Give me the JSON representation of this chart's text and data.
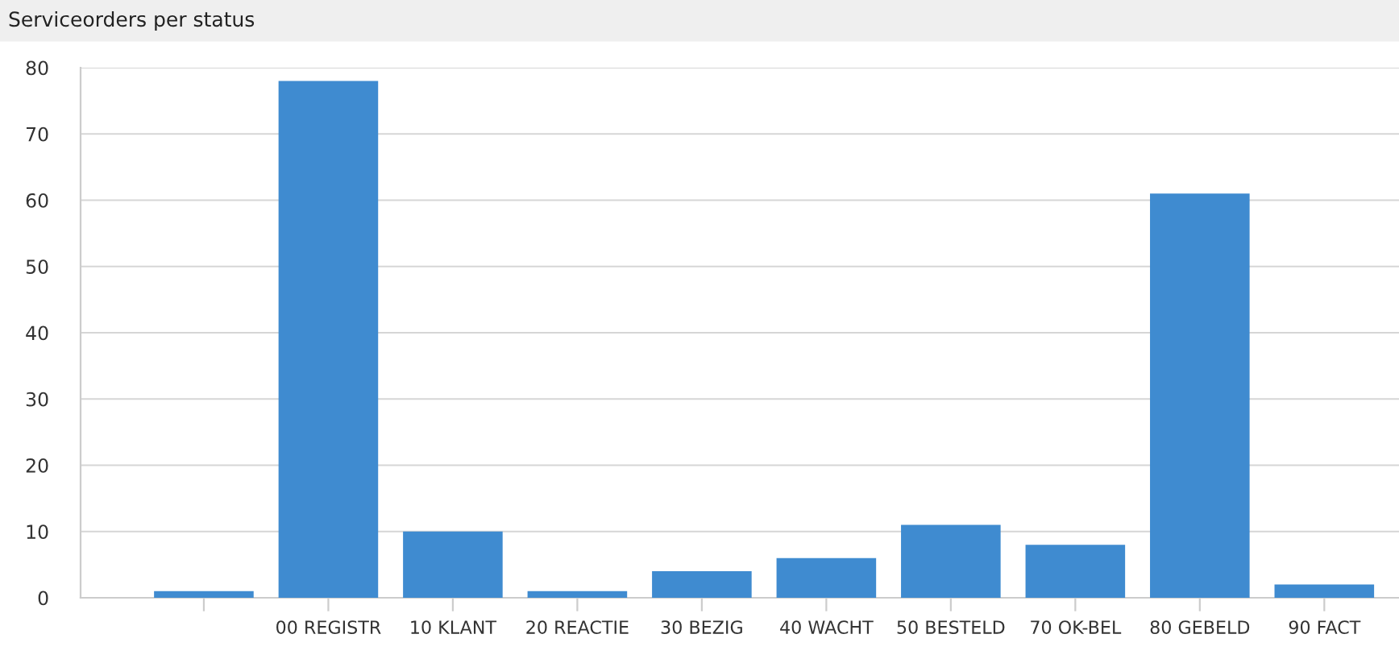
{
  "chart_data": {
    "type": "bar",
    "title": "Serviceorders per status",
    "categories": [
      null,
      "00 REGISTR",
      "10 KLANT",
      "20 REACTIE",
      "30 BEZIG",
      "40 WACHT",
      "50 BESTELD",
      "70 OK-BEL",
      "80 GEBELD",
      "90 FACT"
    ],
    "values": [
      1,
      78,
      10,
      1,
      4,
      6,
      11,
      8,
      61,
      2
    ],
    "color": "#3f8bd0",
    "ylim": [
      0,
      80
    ],
    "yticks": [
      0,
      10,
      20,
      30,
      40,
      50,
      60,
      70,
      80
    ],
    "grid": "y"
  }
}
